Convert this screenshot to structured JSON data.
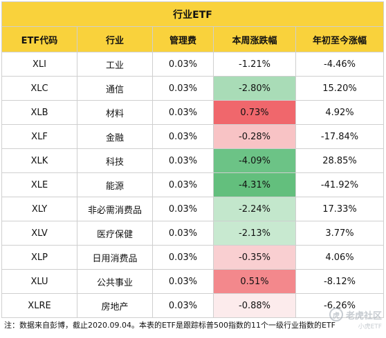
{
  "title": "行业ETF",
  "headers": [
    "ETF代码",
    "行业",
    "管理费",
    "本周涨跌幅",
    "年初至今涨幅"
  ],
  "rows": [
    {
      "code": "XLI",
      "sector": "工业",
      "fee": "0.03%",
      "week": "-1.21%",
      "ytd": "-4.46%",
      "week_color": "#ffffff"
    },
    {
      "code": "XLC",
      "sector": "通信",
      "fee": "0.03%",
      "week": "-2.80%",
      "ytd": "15.20%",
      "week_color": "#a9dcb7"
    },
    {
      "code": "XLB",
      "sector": "材料",
      "fee": "0.03%",
      "week": "0.73%",
      "ytd": "4.92%",
      "week_color": "#f0676c"
    },
    {
      "code": "XLF",
      "sector": "金融",
      "fee": "0.03%",
      "week": "-0.28%",
      "ytd": "-17.84%",
      "week_color": "#f8c3c5"
    },
    {
      "code": "XLK",
      "sector": "科技",
      "fee": "0.03%",
      "week": "-4.09%",
      "ytd": "28.85%",
      "week_color": "#6cc386"
    },
    {
      "code": "XLE",
      "sector": "能源",
      "fee": "0.03%",
      "week": "-4.31%",
      "ytd": "-41.92%",
      "week_color": "#63bf7d"
    },
    {
      "code": "XLY",
      "sector": "非必需消费品",
      "fee": "0.03%",
      "week": "-2.24%",
      "ytd": "17.33%",
      "week_color": "#c3e7cc"
    },
    {
      "code": "XLV",
      "sector": "医疗保健",
      "fee": "0.03%",
      "week": "-2.13%",
      "ytd": "3.77%",
      "week_color": "#c8e9d0"
    },
    {
      "code": "XLP",
      "sector": "日用消费品",
      "fee": "0.03%",
      "week": "-0.35%",
      "ytd": "4.06%",
      "week_color": "#f9cfd1"
    },
    {
      "code": "XLU",
      "sector": "公共事业",
      "fee": "0.03%",
      "week": "0.51%",
      "ytd": "-8.12%",
      "week_color": "#f3888c"
    },
    {
      "code": "XLRE",
      "sector": "房地产",
      "fee": "0.03%",
      "week": "-0.88%",
      "ytd": "-6.26%",
      "week_color": "#fcebec"
    }
  ],
  "note": "注：数据来自彭博，截止2020.09.04。本表的ETF是跟踪标普500指数的11个一级行业指数的ETF",
  "watermark": {
    "text": "老虎社区",
    "sub": "小虎ETF",
    "logo": "tiger-logo"
  },
  "colors": {
    "header": "#f9d23c",
    "border": "#cfcfcf"
  }
}
